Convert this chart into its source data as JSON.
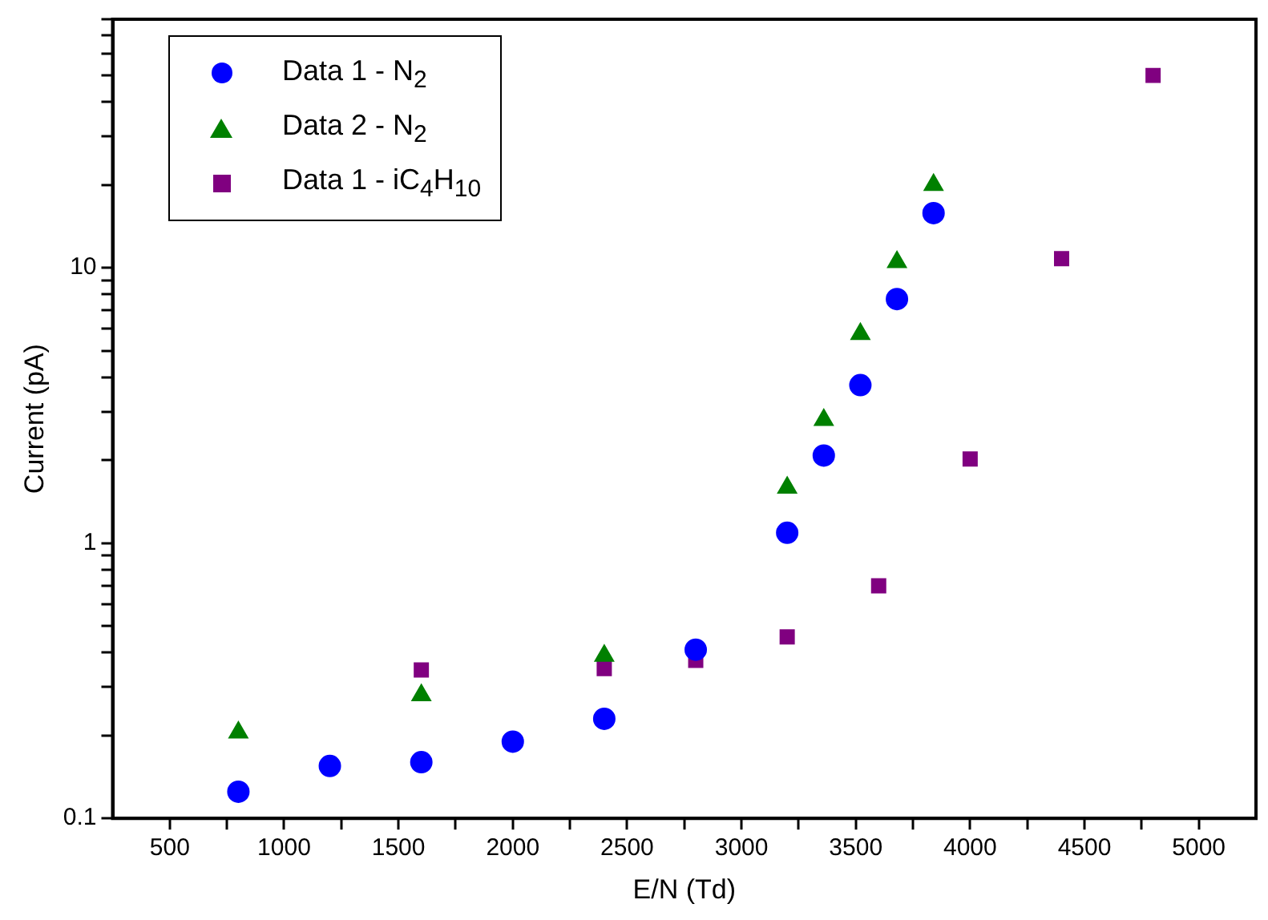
{
  "chart_data": {
    "type": "scatter",
    "xlabel": "E/N (Td)",
    "ylabel": "Current (pA)",
    "log": "y",
    "grid": false,
    "legend": "top left",
    "xlim": [
      250,
      5250
    ],
    "xticks": [
      500,
      {
        "value": 750,
        "label": null
      },
      1000,
      {
        "value": 1250,
        "label": null
      },
      1500,
      {
        "value": 1750,
        "label": null
      },
      2000,
      {
        "value": 2250,
        "label": null
      },
      2500,
      {
        "value": 2750,
        "label": null
      },
      3000,
      {
        "value": 3250,
        "label": null
      },
      3500,
      {
        "value": 3750,
        "label": null
      },
      4000,
      {
        "value": 4250,
        "label": null
      },
      4500,
      {
        "value": 4750,
        "label": null
      },
      5000
    ],
    "ylim": [
      0.1,
      80
    ],
    "yticks": [
      0.1,
      {
        "value": 0.2,
        "label": null
      },
      {
        "value": 0.3,
        "label": null
      },
      {
        "value": 0.4,
        "label": null
      },
      {
        "value": 0.5,
        "label": null
      },
      {
        "value": 0.6,
        "label": null
      },
      {
        "value": 0.7,
        "label": null
      },
      {
        "value": 0.8,
        "label": null
      },
      {
        "value": 0.9,
        "label": null
      },
      1,
      {
        "value": 2,
        "label": null
      },
      {
        "value": 3,
        "label": null
      },
      {
        "value": 4,
        "label": null
      },
      {
        "value": 5,
        "label": null
      },
      {
        "value": 6,
        "label": null
      },
      {
        "value": 7,
        "label": null
      },
      {
        "value": 8,
        "label": null
      },
      {
        "value": 9,
        "label": null
      },
      10,
      {
        "value": 20,
        "label": null
      },
      {
        "value": 30,
        "label": null
      },
      {
        "value": 40,
        "label": null
      },
      {
        "value": 50,
        "label": null
      },
      {
        "value": 60,
        "label": null
      },
      {
        "value": 70,
        "label": null
      },
      {
        "value": 80,
        "label": null
      }
    ],
    "series": [
      {
        "name": "Data 1 - N$_{2}$",
        "color": "#0000ff",
        "marker": "circle",
        "x": [
          800,
          1200,
          1600,
          2000,
          2400,
          2800,
          3200,
          3360,
          3520,
          3680,
          3840
        ],
        "values": [
          0.125,
          0.155,
          0.16,
          0.19,
          0.23,
          0.41,
          1.09,
          2.08,
          3.75,
          7.7,
          15.8
        ]
      },
      {
        "name": "Data 2 - N$_{2}$",
        "color": "#008000",
        "marker": "triangle",
        "x": [
          800,
          1600,
          2400,
          3200,
          3360,
          3520,
          3680,
          3840
        ],
        "values": [
          0.205,
          0.28,
          0.39,
          1.59,
          2.8,
          5.75,
          10.5,
          20
        ]
      },
      {
        "name": "Data 1 - iC$_{4}$H$_{10}$",
        "color": "#800080",
        "marker": "square",
        "x": [
          1600,
          2400,
          2800,
          3200,
          3600,
          4000,
          4400,
          4800
        ],
        "values": [
          0.346,
          0.35,
          0.375,
          0.456,
          0.7,
          2.02,
          10.8,
          50
        ]
      }
    ]
  }
}
